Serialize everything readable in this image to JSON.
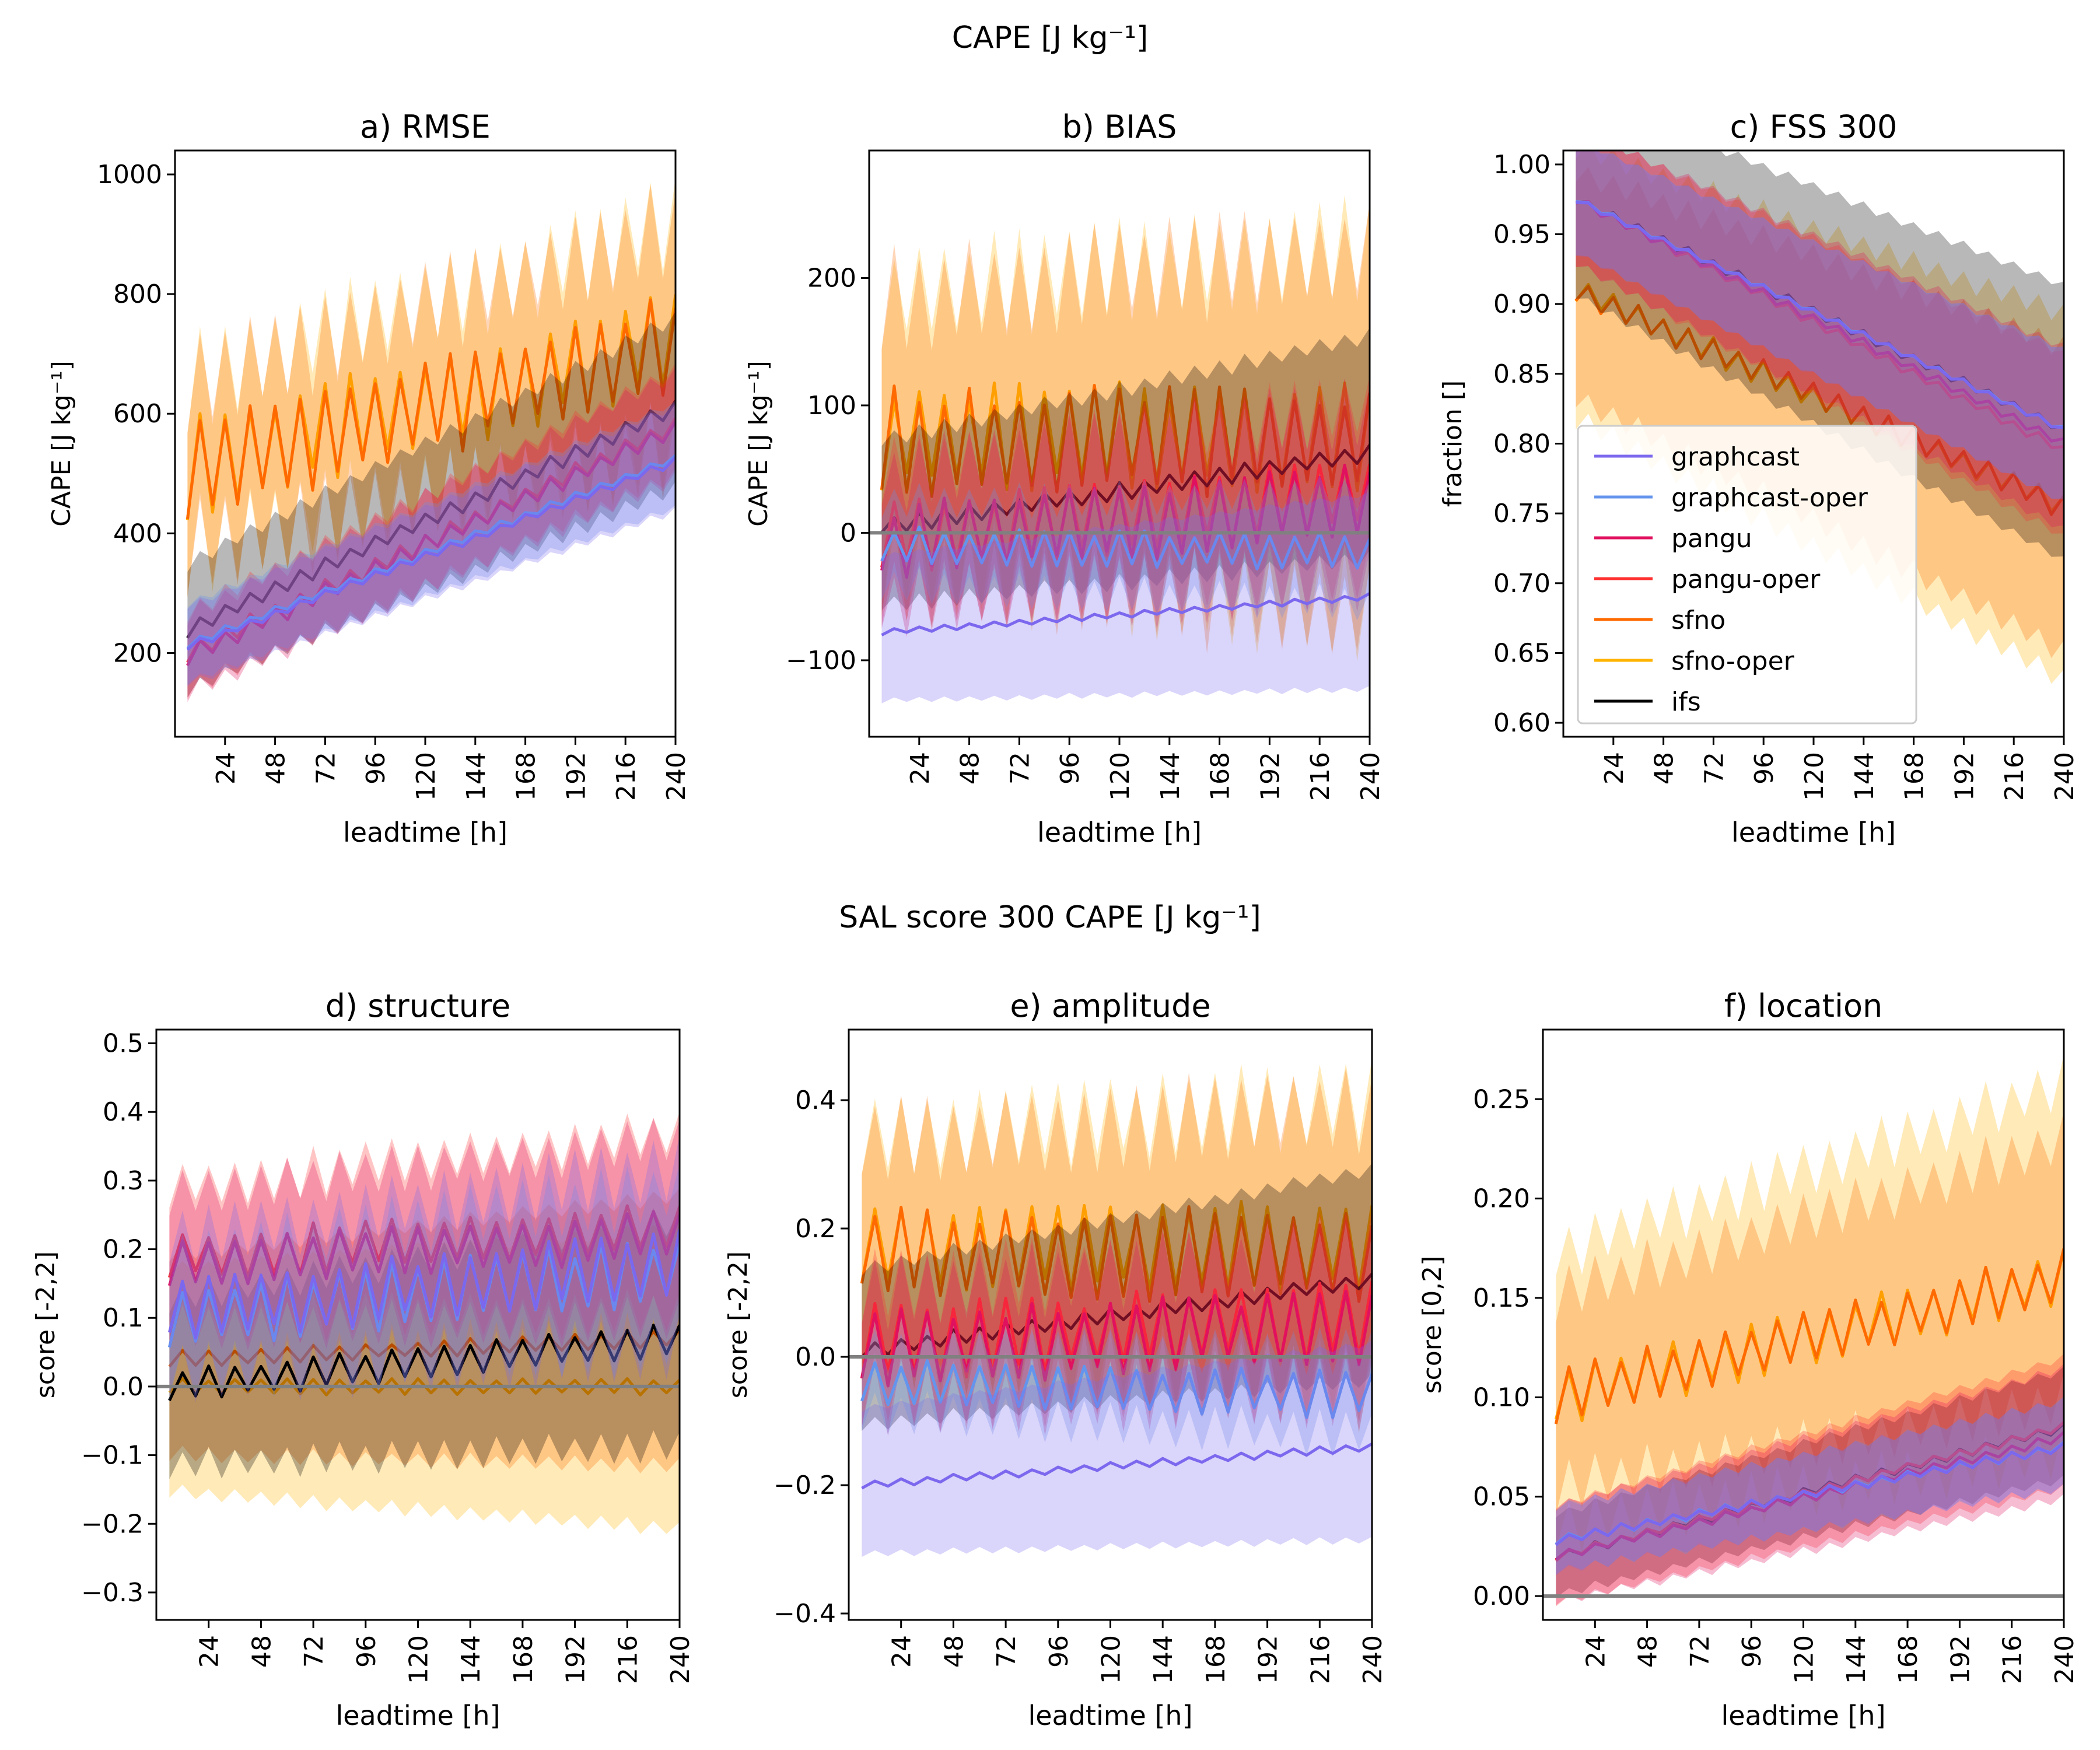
{
  "figure": {
    "row1_title": "CAPE [J kg⁻¹]",
    "row2_title": "SAL score 300 CAPE [J kg⁻¹]"
  },
  "legend": {
    "entries": [
      {
        "name": "graphcast",
        "color": "#7b68ee"
      },
      {
        "name": "graphcast-oper",
        "color": "#6495ed"
      },
      {
        "name": "pangu",
        "color": "#e0115f"
      },
      {
        "name": "pangu-oper",
        "color": "#ff3030"
      },
      {
        "name": "sfno",
        "color": "#ff6a00"
      },
      {
        "name": "sfno-oper",
        "color": "#ffb300"
      },
      {
        "name": "ifs",
        "color": "#000000"
      }
    ]
  },
  "chart_data": [
    {
      "id": "rmse",
      "type": "line",
      "title": "a) RMSE",
      "xlabel": "leadtime [h]",
      "ylabel": "CAPE [J kg⁻¹]",
      "xlim": [
        0,
        240
      ],
      "ylim": [
        60,
        1040
      ],
      "xticks": [
        24,
        48,
        72,
        96,
        120,
        144,
        168,
        192,
        216,
        240
      ],
      "yticks": [
        200,
        400,
        600,
        800,
        1000
      ],
      "yticklabels": [
        "200",
        "400",
        "600",
        "800",
        "1000"
      ],
      "refline": null,
      "legend": false,
      "series": [
        {
          "name": "sfno-oper",
          "color": "#ffb300",
          "start": 510,
          "end": 720,
          "osc": 70,
          "band": 170
        },
        {
          "name": "sfno",
          "color": "#ff6a00",
          "start": 505,
          "end": 715,
          "osc": 70,
          "band": 170
        },
        {
          "name": "ifs",
          "color": "#000000",
          "start": 240,
          "end": 610,
          "osc": 12,
          "band": 130
        },
        {
          "name": "pangu-oper",
          "color": "#ff3030",
          "start": 200,
          "end": 580,
          "osc": 14,
          "band": 80
        },
        {
          "name": "pangu",
          "color": "#e0115f",
          "start": 195,
          "end": 575,
          "osc": 14,
          "band": 80
        },
        {
          "name": "graphcast-oper",
          "color": "#6495ed",
          "start": 215,
          "end": 525,
          "osc": 6,
          "band": 80
        },
        {
          "name": "graphcast",
          "color": "#7b68ee",
          "start": 210,
          "end": 520,
          "osc": 6,
          "band": 80
        }
      ]
    },
    {
      "id": "bias",
      "type": "line",
      "title": "b) BIAS",
      "xlabel": "leadtime [h]",
      "ylabel": "CAPE [J kg⁻¹]",
      "xlim": [
        0,
        240
      ],
      "ylim": [
        -160,
        300
      ],
      "xticks": [
        24,
        48,
        72,
        96,
        120,
        144,
        168,
        192,
        216,
        240
      ],
      "yticks": [
        -100,
        0,
        100,
        200
      ],
      "yticklabels": [
        "−100",
        "0",
        "100",
        "200"
      ],
      "refline": 0,
      "legend": false,
      "series": [
        {
          "name": "sfno-oper",
          "color": "#ffb300",
          "start": 75,
          "end": 75,
          "osc": 35,
          "band": 130
        },
        {
          "name": "sfno",
          "color": "#ff6a00",
          "start": 72,
          "end": 72,
          "osc": 35,
          "band": 130
        },
        {
          "name": "ifs",
          "color": "#000000",
          "start": 5,
          "end": 62,
          "osc": 6,
          "band": 80
        },
        {
          "name": "pangu-oper",
          "color": "#ff3030",
          "start": -5,
          "end": 30,
          "osc": 25,
          "band": 60
        },
        {
          "name": "pangu",
          "color": "#e0115f",
          "start": -8,
          "end": 25,
          "osc": 25,
          "band": 60
        },
        {
          "name": "graphcast-oper",
          "color": "#6495ed",
          "start": -10,
          "end": -15,
          "osc": 12,
          "band": 40
        },
        {
          "name": "graphcast",
          "color": "#7b68ee",
          "start": -78,
          "end": -50,
          "osc": 2,
          "band": 70
        }
      ]
    },
    {
      "id": "fss",
      "type": "line",
      "title": "c) FSS 300",
      "xlabel": "leadtime [h]",
      "ylabel": "fraction []",
      "xlim": [
        0,
        240
      ],
      "ylim": [
        0.59,
        1.01
      ],
      "xticks": [
        24,
        48,
        72,
        96,
        120,
        144,
        168,
        192,
        216,
        240
      ],
      "yticks": [
        0.6,
        0.65,
        0.7,
        0.75,
        0.8,
        0.85,
        0.9,
        0.95,
        1.0
      ],
      "yticklabels": [
        "0.60",
        "0.65",
        "0.70",
        "0.75",
        "0.80",
        "0.85",
        "0.90",
        "0.95",
        "1.00"
      ],
      "refline": null,
      "legend": true,
      "series": [
        {
          "name": "sfno-oper",
          "color": "#ffb300",
          "start": 0.91,
          "end": 0.755,
          "osc": 0.008,
          "band": 0.12
        },
        {
          "name": "sfno",
          "color": "#ff6a00",
          "start": 0.91,
          "end": 0.755,
          "osc": 0.008,
          "band": 0.1
        },
        {
          "name": "ifs",
          "color": "#000000",
          "start": 0.975,
          "end": 0.81,
          "osc": 0.003,
          "band": 0.09
        },
        {
          "name": "pangu-oper",
          "color": "#ff3030",
          "start": 0.975,
          "end": 0.795,
          "osc": 0.003,
          "band": 0.06
        },
        {
          "name": "pangu",
          "color": "#e0115f",
          "start": 0.975,
          "end": 0.8,
          "osc": 0.003,
          "band": 0.06
        },
        {
          "name": "graphcast-oper",
          "color": "#6495ed",
          "start": 0.975,
          "end": 0.81,
          "osc": 0.002,
          "band": 0.05
        },
        {
          "name": "graphcast",
          "color": "#7b68ee",
          "start": 0.975,
          "end": 0.81,
          "osc": 0.002,
          "band": 0.05
        }
      ]
    },
    {
      "id": "structure",
      "type": "line",
      "title": "d) structure",
      "xlabel": "leadtime [h]",
      "ylabel": "score [-2,2]",
      "xlim": [
        0,
        240
      ],
      "ylim": [
        -0.34,
        0.52
      ],
      "xticks": [
        24,
        48,
        72,
        96,
        120,
        144,
        168,
        192,
        216,
        240
      ],
      "yticks": [
        -0.3,
        -0.2,
        -0.1,
        0.0,
        0.1,
        0.2,
        0.3,
        0.4,
        0.5
      ],
      "yticklabels": [
        "−0.3",
        "−0.2",
        "−0.1",
        "0.0",
        "0.1",
        "0.2",
        "0.3",
        "0.4",
        "0.5"
      ],
      "refline": 0,
      "legend": false,
      "series": [
        {
          "name": "sfno-oper",
          "color": "#ffb300",
          "start": 0.0,
          "end": 0.0,
          "osc": 0.01,
          "band": 0.2
        },
        {
          "name": "sfno",
          "color": "#ff6a00",
          "start": 0.04,
          "end": 0.07,
          "osc": 0.01,
          "band": 0.18
        },
        {
          "name": "ifs",
          "color": "#000000",
          "start": 0.0,
          "end": 0.07,
          "osc": 0.02,
          "band": 0.15
        },
        {
          "name": "pangu-oper",
          "color": "#ff3030",
          "start": 0.19,
          "end": 0.23,
          "osc": 0.03,
          "band": 0.12
        },
        {
          "name": "pangu",
          "color": "#e0115f",
          "start": 0.18,
          "end": 0.22,
          "osc": 0.03,
          "band": 0.12
        },
        {
          "name": "graphcast-oper",
          "color": "#6495ed",
          "start": 0.1,
          "end": 0.17,
          "osc": 0.04,
          "band": 0.1
        },
        {
          "name": "graphcast",
          "color": "#7b68ee",
          "start": 0.11,
          "end": 0.18,
          "osc": 0.04,
          "band": 0.12
        }
      ]
    },
    {
      "id": "amplitude",
      "type": "line",
      "title": "e) amplitude",
      "xlabel": "leadtime [h]",
      "ylabel": "score [-2,2]",
      "xlim": [
        0,
        240
      ],
      "ylim": [
        -0.41,
        0.51
      ],
      "xticks": [
        24,
        48,
        72,
        96,
        120,
        144,
        168,
        192,
        216,
        240
      ],
      "yticks": [
        -0.4,
        -0.2,
        0.0,
        0.2,
        0.4
      ],
      "yticklabels": [
        "−0.4",
        "−0.2",
        "0.0",
        "0.2",
        "0.4"
      ],
      "refline": 0,
      "legend": false,
      "series": [
        {
          "name": "sfno-oper",
          "color": "#ffb300",
          "start": 0.17,
          "end": 0.17,
          "osc": 0.06,
          "band": 0.2
        },
        {
          "name": "sfno",
          "color": "#ff6a00",
          "start": 0.16,
          "end": 0.16,
          "osc": 0.06,
          "band": 0.2
        },
        {
          "name": "ifs",
          "color": "#000000",
          "start": 0.01,
          "end": 0.12,
          "osc": 0.01,
          "band": 0.15
        },
        {
          "name": "pangu-oper",
          "color": "#ff3030",
          "start": 0.02,
          "end": 0.06,
          "osc": 0.05,
          "band": 0.1
        },
        {
          "name": "pangu",
          "color": "#e0115f",
          "start": 0.01,
          "end": 0.05,
          "osc": 0.05,
          "band": 0.1
        },
        {
          "name": "graphcast-oper",
          "color": "#6495ed",
          "start": -0.04,
          "end": -0.06,
          "osc": 0.03,
          "band": 0.06
        },
        {
          "name": "graphcast",
          "color": "#7b68ee",
          "start": -0.2,
          "end": -0.14,
          "osc": 0.005,
          "band": 0.14
        }
      ]
    },
    {
      "id": "location",
      "type": "line",
      "title": "f) location",
      "xlabel": "leadtime [h]",
      "ylabel": "score [0,2]",
      "xlim": [
        0,
        240
      ],
      "ylim": [
        -0.012,
        0.285
      ],
      "xticks": [
        24,
        48,
        72,
        96,
        120,
        144,
        168,
        192,
        216,
        240
      ],
      "yticks": [
        0.0,
        0.05,
        0.1,
        0.15,
        0.2,
        0.25
      ],
      "yticklabels": [
        "0.00",
        "0.05",
        "0.10",
        "0.15",
        "0.20",
        "0.25"
      ],
      "refline": 0,
      "legend": false,
      "series": [
        {
          "name": "sfno-oper",
          "color": "#ffb300",
          "start": 0.1,
          "end": 0.16,
          "osc": 0.012,
          "band": 0.085
        },
        {
          "name": "sfno",
          "color": "#ff6a00",
          "start": 0.1,
          "end": 0.16,
          "osc": 0.012,
          "band": 0.06
        },
        {
          "name": "ifs",
          "color": "#000000",
          "start": 0.02,
          "end": 0.085,
          "osc": 0.002,
          "band": 0.025
        },
        {
          "name": "pangu-oper",
          "color": "#ff3030",
          "start": 0.02,
          "end": 0.085,
          "osc": 0.002,
          "band": 0.03
        },
        {
          "name": "pangu",
          "color": "#e0115f",
          "start": 0.02,
          "end": 0.08,
          "osc": 0.002,
          "band": 0.03
        },
        {
          "name": "graphcast-oper",
          "color": "#6495ed",
          "start": 0.028,
          "end": 0.075,
          "osc": 0.002,
          "band": 0.02
        },
        {
          "name": "graphcast",
          "color": "#7b68ee",
          "start": 0.028,
          "end": 0.075,
          "osc": 0.002,
          "band": 0.02
        }
      ]
    }
  ]
}
